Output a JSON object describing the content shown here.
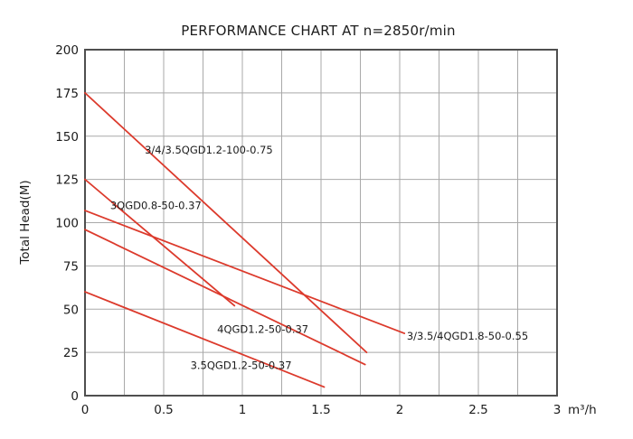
{
  "chart_data": {
    "type": "line",
    "title": "PERFORMANCE CHART AT n=2850r/min",
    "xlabel": "m³/h",
    "ylabel": "Total Head(M)",
    "xlim": [
      0,
      3
    ],
    "ylim": [
      0,
      200
    ],
    "x_ticks": [
      "0",
      "0.5",
      "1",
      "1.5",
      "2",
      "2.5",
      "3"
    ],
    "x_tick_values": [
      0,
      0.5,
      1,
      1.5,
      2,
      2.5,
      3
    ],
    "y_ticks": [
      "0",
      "25",
      "50",
      "75",
      "100",
      "125",
      "150",
      "175",
      "200"
    ],
    "y_tick_values": [
      0,
      25,
      50,
      75,
      100,
      125,
      150,
      175,
      200
    ],
    "x_minor_step": 0.25,
    "y_grid_step": 25,
    "grid": true,
    "legend_position": "none",
    "colors": {
      "line": "#dc3a2c",
      "grid": "#a9a9a9",
      "axis": "#4f4f4f",
      "text": "#1c1c1c",
      "background": "#ffffff"
    },
    "series": [
      {
        "name": "3/4/3.5QGD1.2-100-0.75",
        "points": [
          [
            0,
            175
          ],
          [
            1.79,
            25
          ]
        ],
        "label_pos": [
          0.38,
          142
        ]
      },
      {
        "name": "3QGD0.8-50-0.37",
        "points": [
          [
            0,
            125
          ],
          [
            0.95,
            52
          ]
        ],
        "label_pos": [
          0.16,
          110
        ]
      },
      {
        "name": "3/3.5/4QGD1.8-50-0.55",
        "points": [
          [
            0,
            107
          ],
          [
            2.03,
            36
          ]
        ],
        "label_pos": [
          2.045,
          34.5
        ]
      },
      {
        "name": "4QGD1.2-50-0.37",
        "points": [
          [
            0,
            96
          ],
          [
            1.78,
            18
          ]
        ],
        "label_pos": [
          0.84,
          38.5
        ]
      },
      {
        "name": "3.5QGD1.2-50-0.37",
        "points": [
          [
            0,
            60
          ],
          [
            1.52,
            5
          ]
        ],
        "label_pos": [
          0.67,
          17.5
        ]
      }
    ]
  }
}
